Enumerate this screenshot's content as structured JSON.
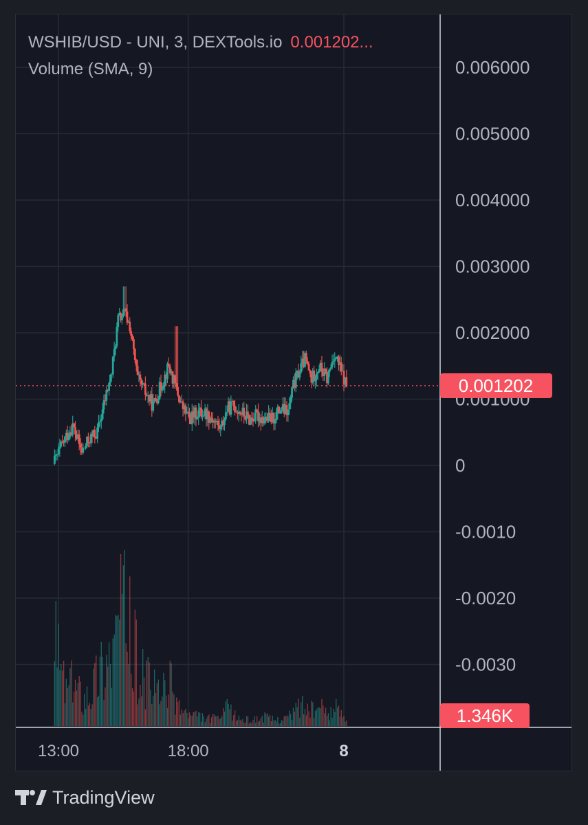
{
  "legend": {
    "symbol": "WSHIB/USD - UNI, 3, DEXTools.io",
    "last_price": "0.001202...",
    "indicator": "Volume (SMA, 9)"
  },
  "footer": {
    "brand": "TradingView"
  },
  "colors": {
    "up": "#26a69a",
    "down": "#ef5350",
    "price_tag": "#f7525f",
    "grid": "#262a36",
    "axis_text": "#b2b5be"
  },
  "chart_data": {
    "type": "candlestick",
    "title": "WSHIB/USD - UNI, 3, DEXTools.io",
    "interval": "3",
    "y_ticks": [
      "0.006000",
      "0.005000",
      "0.004000",
      "0.003000",
      "0.002000",
      "0.001000",
      "0",
      "-0.0010",
      "-0.0020",
      "-0.0030"
    ],
    "y_tick_values": [
      0.006,
      0.005,
      0.004,
      0.003,
      0.002,
      0.001,
      0,
      -0.001,
      -0.002,
      -0.003
    ],
    "ylim": [
      -0.004,
      0.0066
    ],
    "x_ticks": [
      {
        "label": "13:00",
        "hours": 13
      },
      {
        "label": "18:00",
        "hours": 18
      },
      {
        "label": "8",
        "hours": 24
      }
    ],
    "time_range_hours": [
      12.75,
      24.1
    ],
    "current_price_label": "0.001202",
    "current_price": 0.001202,
    "volume_label": "1.346K",
    "price_path": [
      [
        12.85,
        2e-05
      ],
      [
        13.3,
        0.0004
      ],
      [
        13.6,
        0.0006
      ],
      [
        13.95,
        0.0002
      ],
      [
        14.25,
        0.0004
      ],
      [
        14.55,
        0.0005
      ],
      [
        14.85,
        0.001
      ],
      [
        15.1,
        0.0014
      ],
      [
        15.35,
        0.0022
      ],
      [
        15.6,
        0.0023
      ],
      [
        15.8,
        0.0021
      ],
      [
        16.1,
        0.0013
      ],
      [
        16.4,
        0.0011
      ],
      [
        16.7,
        0.0009
      ],
      [
        17.0,
        0.0012
      ],
      [
        17.3,
        0.0015
      ],
      [
        17.55,
        0.0012
      ],
      [
        17.8,
        0.0009
      ],
      [
        18.1,
        0.0007
      ],
      [
        18.4,
        0.0008
      ],
      [
        18.7,
        0.0008
      ],
      [
        19.0,
        0.0007
      ],
      [
        19.3,
        0.00055
      ],
      [
        19.55,
        0.00085
      ],
      [
        19.8,
        0.0009
      ],
      [
        20.1,
        0.0008
      ],
      [
        20.4,
        0.0007
      ],
      [
        20.7,
        0.00075
      ],
      [
        21.0,
        0.0007
      ],
      [
        21.3,
        0.0007
      ],
      [
        21.6,
        0.00085
      ],
      [
        21.9,
        0.0008
      ],
      [
        22.1,
        0.0012
      ],
      [
        22.3,
        0.0014
      ],
      [
        22.55,
        0.0016
      ],
      [
        22.8,
        0.0013
      ],
      [
        23.1,
        0.0015
      ],
      [
        23.4,
        0.0013
      ],
      [
        23.7,
        0.0017
      ],
      [
        23.95,
        0.0014
      ],
      [
        24.15,
        0.0012
      ]
    ],
    "volume_path": [
      [
        12.85,
        0.7
      ],
      [
        13.3,
        0.3
      ],
      [
        13.6,
        0.35
      ],
      [
        13.95,
        0.25
      ],
      [
        14.25,
        0.3
      ],
      [
        14.55,
        0.45
      ],
      [
        14.85,
        0.55
      ],
      [
        15.1,
        0.6
      ],
      [
        15.35,
        0.95
      ],
      [
        15.6,
        0.9
      ],
      [
        15.8,
        0.7
      ],
      [
        16.1,
        0.45
      ],
      [
        16.4,
        0.35
      ],
      [
        16.7,
        0.3
      ],
      [
        17.0,
        0.25
      ],
      [
        17.3,
        0.35
      ],
      [
        17.55,
        0.2
      ],
      [
        17.8,
        0.12
      ],
      [
        18.1,
        0.08
      ],
      [
        18.4,
        0.08
      ],
      [
        18.7,
        0.06
      ],
      [
        19.0,
        0.06
      ],
      [
        19.3,
        0.08
      ],
      [
        19.55,
        0.15
      ],
      [
        19.8,
        0.08
      ],
      [
        20.1,
        0.05
      ],
      [
        20.4,
        0.05
      ],
      [
        20.7,
        0.06
      ],
      [
        21.0,
        0.07
      ],
      [
        21.3,
        0.05
      ],
      [
        21.6,
        0.06
      ],
      [
        21.9,
        0.08
      ],
      [
        22.1,
        0.12
      ],
      [
        22.3,
        0.18
      ],
      [
        22.55,
        0.15
      ],
      [
        22.8,
        0.12
      ],
      [
        23.1,
        0.14
      ],
      [
        23.4,
        0.12
      ],
      [
        23.7,
        0.14
      ],
      [
        23.95,
        0.1
      ],
      [
        24.15,
        0.05
      ]
    ]
  }
}
